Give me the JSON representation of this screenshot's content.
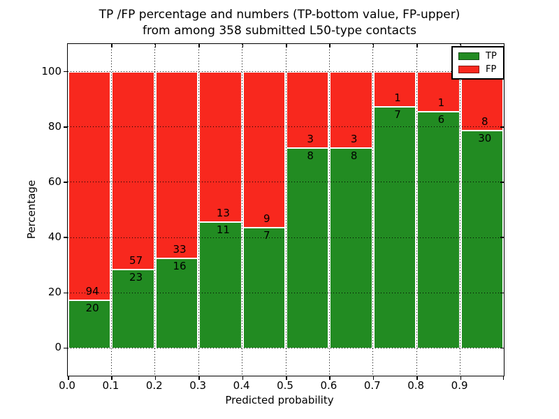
{
  "title": {
    "line1": "TP /FP percentage and numbers (TP-bottom value, FP-upper)",
    "line2": "from among 358 submitted L50-type contacts"
  },
  "axes": {
    "ylabel": "Percentage",
    "xlabel": "Predicted probability"
  },
  "legend": {
    "items": [
      {
        "label": "TP",
        "color": "#228b22"
      },
      {
        "label": "FP",
        "color": "#f8281e"
      }
    ]
  },
  "colors": {
    "tp": "#228b22",
    "fp": "#f8281e",
    "edge": "#ffffff",
    "grid": "#000000"
  },
  "chart_data": {
    "type": "bar",
    "stacked": true,
    "normalized": "each bin stack sums to 100%",
    "title": "TP /FP percentage and numbers (TP-bottom value, FP-upper) from among 358 submitted L50-type contacts",
    "xlabel": "Predicted probability",
    "ylabel": "Percentage",
    "x_bin_edges": [
      0.0,
      0.1,
      0.2,
      0.3,
      0.4,
      0.5,
      0.6,
      0.7,
      0.8,
      0.9,
      1.0
    ],
    "x_tick_labels": [
      "0.0",
      "0.1",
      "0.2",
      "0.3",
      "0.4",
      "0.5",
      "0.6",
      "0.7",
      "0.8",
      "0.9"
    ],
    "y_ticks": [
      0,
      20,
      40,
      60,
      80,
      100
    ],
    "ylim": [
      -10,
      110
    ],
    "grid": "dotted, both axes",
    "legend_position": "upper right",
    "series": [
      {
        "name": "TP",
        "color": "#228b22",
        "counts": [
          20,
          23,
          16,
          11,
          7,
          8,
          8,
          7,
          6,
          30
        ]
      },
      {
        "name": "FP",
        "color": "#f8281e",
        "counts": [
          94,
          57,
          33,
          13,
          9,
          3,
          3,
          1,
          1,
          8
        ]
      }
    ],
    "tp_percent": [
      17.54,
      28.75,
      32.65,
      45.83,
      43.75,
      72.73,
      72.73,
      87.5,
      85.71,
      78.95
    ],
    "total_contacts": 358
  }
}
